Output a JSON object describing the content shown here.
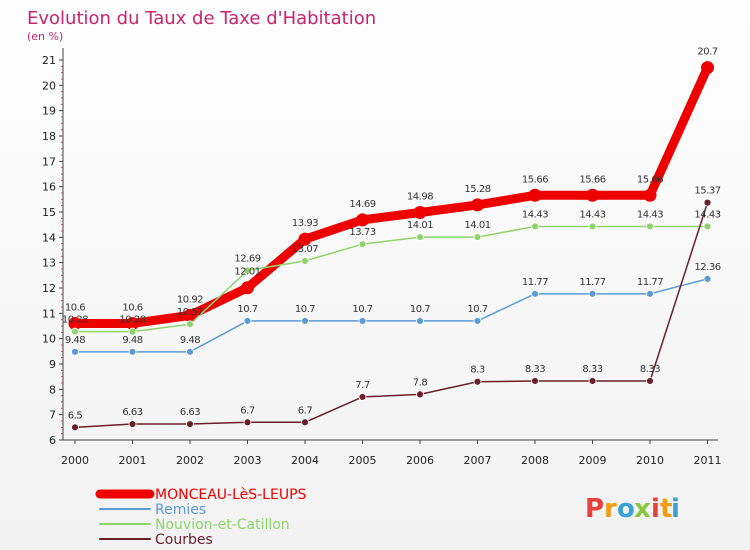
{
  "chart_data": {
    "type": "line",
    "title": "Evolution du Taux de Taxe d'Habitation",
    "subtitle": "(en %)",
    "xlabel": "",
    "ylabel": "",
    "x": [
      "2000",
      "2001",
      "2002",
      "2003",
      "2004",
      "2005",
      "2006",
      "2007",
      "2008",
      "2009",
      "2010",
      "2011"
    ],
    "ylim": [
      6,
      21
    ],
    "yticks": [
      "6",
      "7",
      "8",
      "9",
      "10",
      "11",
      "12",
      "13",
      "14",
      "15",
      "16",
      "17",
      "18",
      "19",
      "20",
      "21"
    ],
    "grid": false,
    "legend_position": "bottom-left",
    "series": [
      {
        "name": "MONCEAU-LèS-LEUPS",
        "color": "#ee0000",
        "values": [
          10.6,
          10.6,
          10.92,
          12.01,
          13.93,
          14.69,
          14.98,
          15.28,
          15.66,
          15.66,
          15.66,
          20.7
        ],
        "labels": [
          "10.6",
          "10.6",
          "10.92",
          "12.01",
          "13.93",
          "14.69",
          "14.98",
          "15.28",
          "15.66",
          "15.66",
          "15.66",
          "20.7"
        ]
      },
      {
        "name": "Remies",
        "color": "#5b9bd5",
        "values": [
          9.48,
          9.48,
          9.48,
          10.7,
          10.7,
          10.7,
          10.7,
          10.7,
          11.77,
          11.77,
          11.77,
          12.36
        ],
        "labels": [
          "9.48",
          "9.48",
          "9.48",
          "10.7",
          "10.7",
          "10.7",
          "10.7",
          "10.7",
          "11.77",
          "11.77",
          "11.77",
          "12.36"
        ]
      },
      {
        "name": "Nouvion-et-Catillon",
        "color": "#8fd46b",
        "values": [
          10.28,
          10.28,
          10.57,
          12.69,
          13.07,
          13.73,
          14.01,
          14.01,
          14.43,
          14.43,
          14.43,
          14.43
        ],
        "labels": [
          "10.28",
          "10.28",
          "10.57",
          "12.69",
          "13.07",
          "13.73",
          "14.01",
          "14.01",
          "14.43",
          "14.43",
          "14.43",
          "14.43"
        ]
      },
      {
        "name": "Courbes",
        "color": "#6b1f2a",
        "values": [
          6.5,
          6.63,
          6.63,
          6.7,
          6.7,
          7.7,
          7.8,
          8.3,
          8.33,
          8.33,
          8.33,
          15.37
        ],
        "labels": [
          "6.5",
          "6.63",
          "6.63",
          "6.7",
          "6.7",
          "7.7",
          "7.8",
          "8.3",
          "8.33",
          "8.33",
          "8.33",
          "15.37"
        ]
      }
    ]
  },
  "legend": {
    "items": [
      "MONCEAU-LèS-LEUPS",
      "Remies",
      "Nouvion-et-Catillon",
      "Courbes"
    ]
  },
  "logo": {
    "letters": [
      "P",
      "r",
      "o",
      "x",
      "i",
      "t",
      "i"
    ],
    "colors": [
      "#e8413c",
      "#f39c12",
      "#3aa0d8",
      "#8cc63f",
      "#e8413c",
      "#f39c12",
      "#3aa0d8"
    ]
  }
}
